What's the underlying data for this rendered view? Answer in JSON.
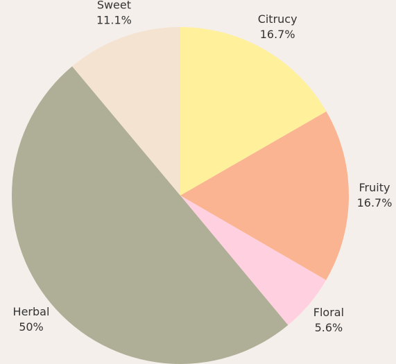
{
  "chart_data": {
    "type": "pie",
    "categories": [
      "Citrucy",
      "Fruity",
      "Floral",
      "Herbal",
      "Sweet"
    ],
    "values": [
      16.7,
      16.7,
      5.6,
      50,
      11.1
    ],
    "value_labels": [
      "16.7%",
      "16.7%",
      "5.6%",
      "50%",
      "11.1%"
    ],
    "colors": [
      "#fff09c",
      "#fbb491",
      "#ffd1e0",
      "#aeaf96",
      "#f5e3d2"
    ]
  }
}
